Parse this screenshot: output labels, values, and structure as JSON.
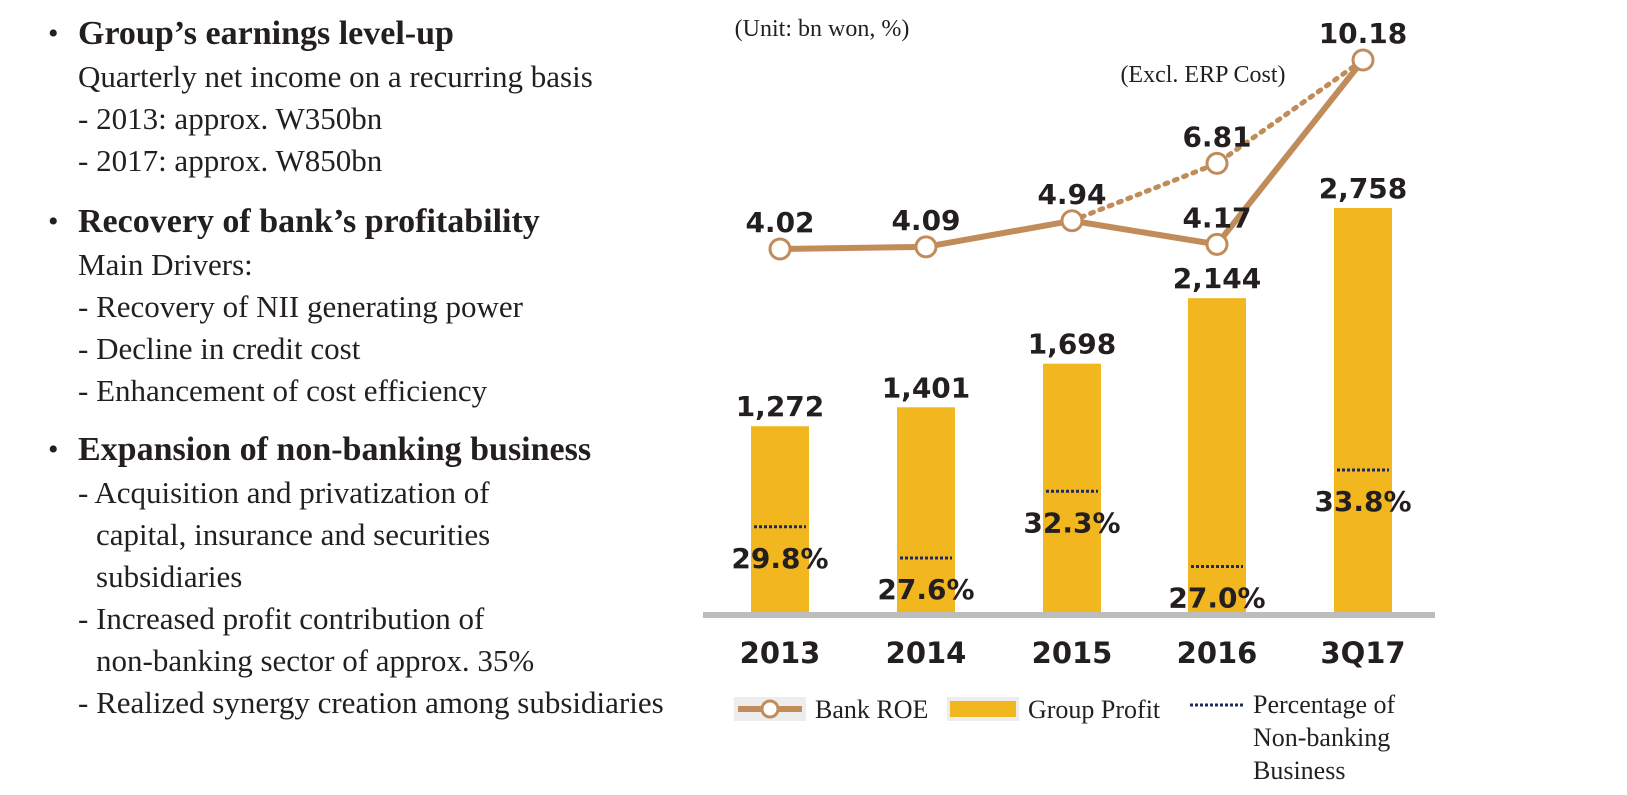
{
  "bullets": [
    {
      "title": "Group’s earnings level-up",
      "lines": [
        "Quarterly net income on a recurring basis",
        "- 2013: approx. W350bn",
        "- 2017: approx. W850bn"
      ]
    },
    {
      "title": "Recovery of bank’s profitability",
      "lines": [
        "Main Drivers:",
        "- Recovery of NII generating power",
        "- Decline in credit cost",
        "- Enhancement of cost efficiency"
      ]
    },
    {
      "title": "Expansion of non-banking business",
      "lines": [
        "- Acquisition and privatization of",
        "capital, insurance and securities",
        "subsidiaries",
        "- Increased profit contribution of",
        "non-banking sector of approx. 35%",
        "- Realized synergy creation among subsidiaries"
      ]
    }
  ],
  "chart_data": {
    "type": "bar",
    "unit_note": "(Unit: bn won, %)",
    "categories": [
      "2013",
      "2014",
      "2015",
      "2016",
      "3Q17"
    ],
    "series": [
      {
        "name": "Group Profit",
        "type": "bar",
        "values": [
          1272,
          1401,
          1698,
          2144,
          2758
        ],
        "labels": [
          "1,272",
          "1,401",
          "1,698",
          "2,144",
          "2,758"
        ]
      },
      {
        "name": "Bank ROE",
        "type": "line",
        "values": [
          4.02,
          4.09,
          4.94,
          4.17,
          10.18
        ],
        "labels": [
          "4.02",
          "4.09",
          "4.94",
          "4.17",
          "10.18"
        ]
      },
      {
        "name": "Percentage of Non-banking Business",
        "type": "marker",
        "values": [
          29.8,
          27.6,
          32.3,
          27.0,
          33.8
        ],
        "labels": [
          "29.8%",
          "27.6%",
          "32.3%",
          "27.0%",
          "33.8%"
        ]
      }
    ],
    "roe_excl_erp": {
      "label": "(Excl. ERP Cost)",
      "category": "2016",
      "value": 6.81,
      "value_label": "6.81"
    },
    "legend": {
      "placement": "bottom",
      "items": [
        "Bank ROE",
        "Group Profit"
      ],
      "nonbank_lines": [
        "Percentage of",
        "Non-banking",
        "Business"
      ]
    },
    "colors": {
      "bar": "#F2B71F",
      "line": "#C08C5A",
      "marker": "#1F2A5C",
      "axis": "#BDBDBD",
      "text": "#231F20"
    }
  }
}
